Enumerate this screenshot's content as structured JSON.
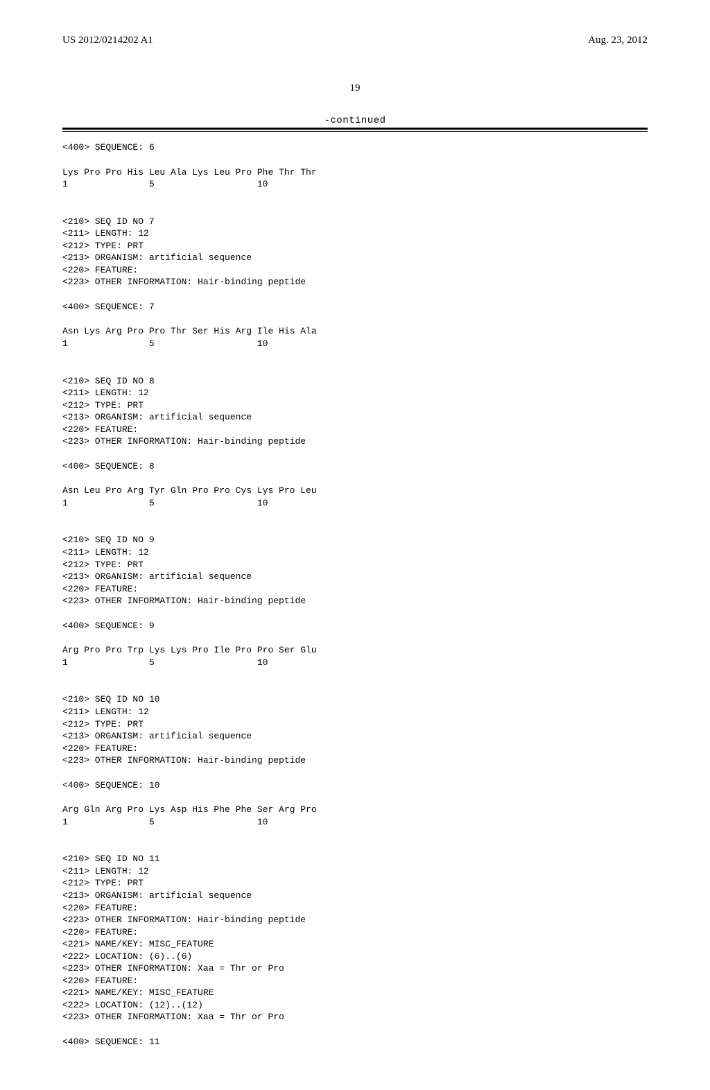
{
  "header": {
    "pub_number": "US 2012/0214202 A1",
    "pub_date": "Aug. 23, 2012"
  },
  "page_number": "19",
  "continued_label": "-continued",
  "sequences": [
    {
      "pre_meta": [
        "<400> SEQUENCE: 6"
      ],
      "residues": "Lys Pro Pro His Leu Ala Lys Leu Pro Phe Thr Thr",
      "positions": "1               5                   10",
      "post_meta": [
        "<210> SEQ ID NO 7",
        "<211> LENGTH: 12",
        "<212> TYPE: PRT",
        "<213> ORGANISM: artificial sequence",
        "<220> FEATURE:",
        "<223> OTHER INFORMATION: Hair-binding peptide"
      ]
    },
    {
      "pre_meta": [
        "<400> SEQUENCE: 7"
      ],
      "residues": "Asn Lys Arg Pro Pro Thr Ser His Arg Ile His Ala",
      "positions": "1               5                   10",
      "post_meta": [
        "<210> SEQ ID NO 8",
        "<211> LENGTH: 12",
        "<212> TYPE: PRT",
        "<213> ORGANISM: artificial sequence",
        "<220> FEATURE:",
        "<223> OTHER INFORMATION: Hair-binding peptide"
      ]
    },
    {
      "pre_meta": [
        "<400> SEQUENCE: 8"
      ],
      "residues": "Asn Leu Pro Arg Tyr Gln Pro Pro Cys Lys Pro Leu",
      "positions": "1               5                   10",
      "post_meta": [
        "<210> SEQ ID NO 9",
        "<211> LENGTH: 12",
        "<212> TYPE: PRT",
        "<213> ORGANISM: artificial sequence",
        "<220> FEATURE:",
        "<223> OTHER INFORMATION: Hair-binding peptide"
      ]
    },
    {
      "pre_meta": [
        "<400> SEQUENCE: 9"
      ],
      "residues": "Arg Pro Pro Trp Lys Lys Pro Ile Pro Pro Ser Glu",
      "positions": "1               5                   10",
      "post_meta": [
        "<210> SEQ ID NO 10",
        "<211> LENGTH: 12",
        "<212> TYPE: PRT",
        "<213> ORGANISM: artificial sequence",
        "<220> FEATURE:",
        "<223> OTHER INFORMATION: Hair-binding peptide"
      ]
    },
    {
      "pre_meta": [
        "<400> SEQUENCE: 10"
      ],
      "residues": "Arg Gln Arg Pro Lys Asp His Phe Phe Ser Arg Pro",
      "positions": "1               5                   10",
      "post_meta": [
        "<210> SEQ ID NO 11",
        "<211> LENGTH: 12",
        "<212> TYPE: PRT",
        "<213> ORGANISM: artificial sequence",
        "<220> FEATURE:",
        "<223> OTHER INFORMATION: Hair-binding peptide",
        "<220> FEATURE:",
        "<221> NAME/KEY: MISC_FEATURE",
        "<222> LOCATION: (6)..(6)",
        "<223> OTHER INFORMATION: Xaa = Thr or Pro",
        "<220> FEATURE:",
        "<221> NAME/KEY: MISC_FEATURE",
        "<222> LOCATION: (12)..(12)",
        "<223> OTHER INFORMATION: Xaa = Thr or Pro"
      ]
    },
    {
      "pre_meta": [
        "<400> SEQUENCE: 11"
      ],
      "residues": null,
      "positions": null,
      "post_meta": []
    }
  ]
}
